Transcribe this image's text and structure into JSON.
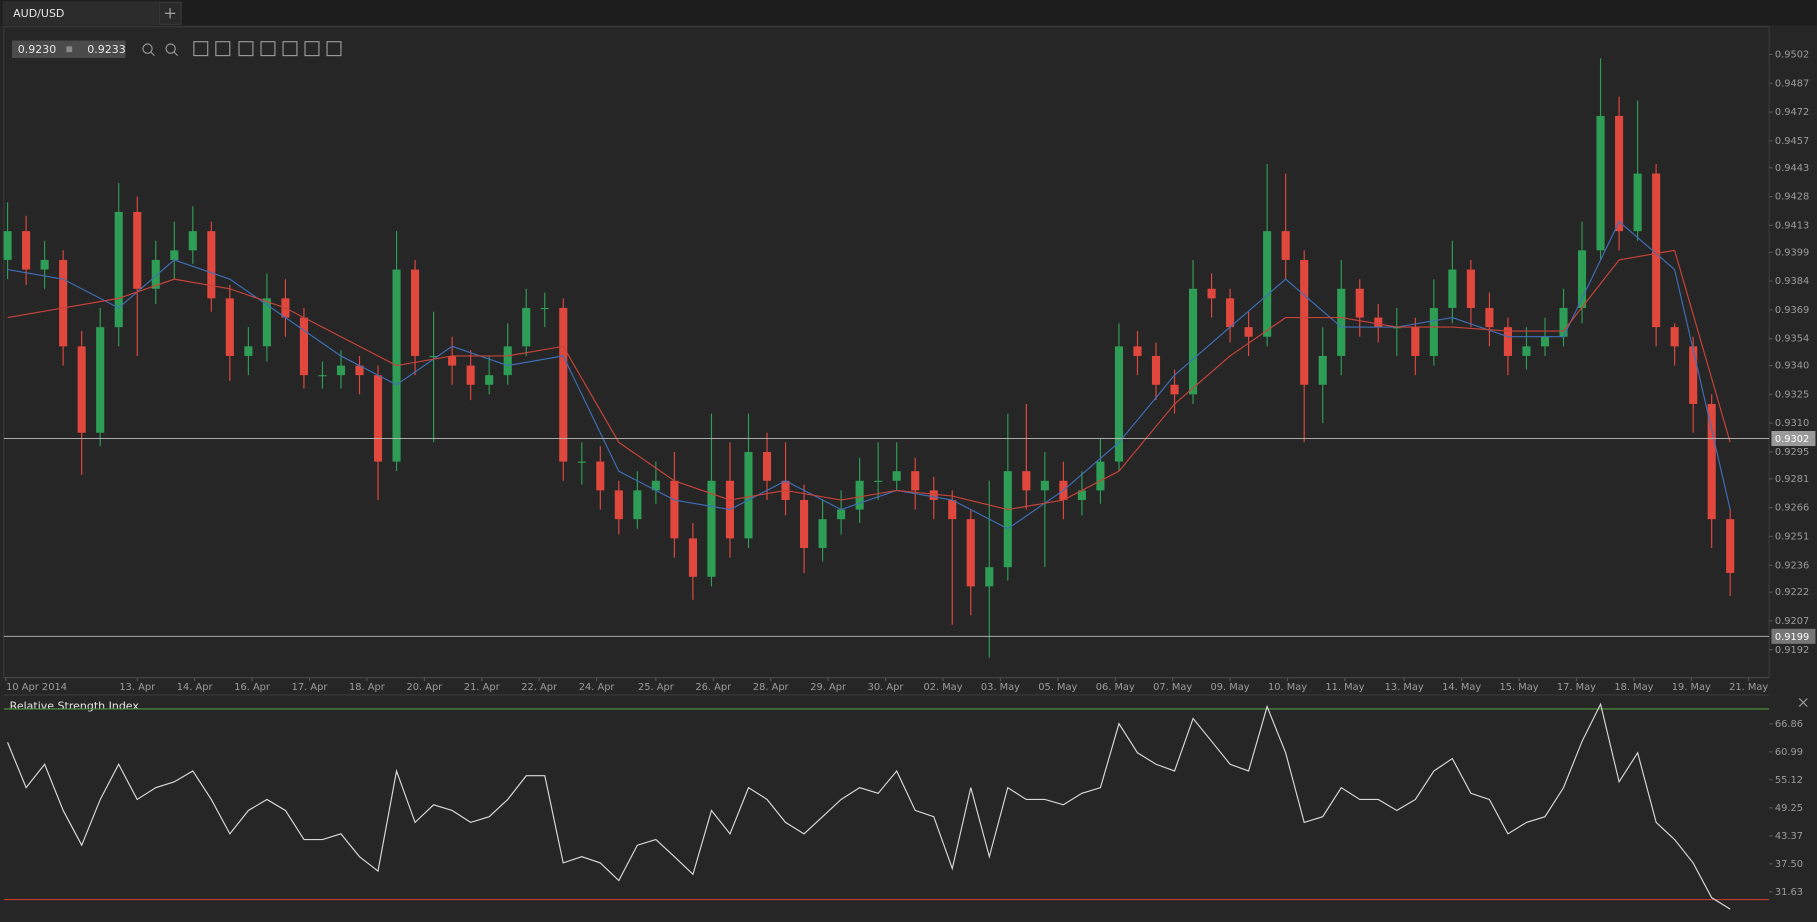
{
  "ui": {
    "tab": "AUD/USD",
    "bid": "0.9230",
    "ask": "0.9233"
  },
  "chart_data": [
    {
      "type": "candlestick",
      "up_color": "#2e9d55",
      "down_color": "#e0483e",
      "open": [
        0.9395,
        0.941,
        0.939,
        0.9395,
        0.935,
        0.9305,
        0.936,
        0.942,
        0.938,
        0.9395,
        0.94,
        0.941,
        0.9375,
        0.9345,
        0.935,
        0.9375,
        0.9365,
        0.9335,
        0.9335,
        0.934,
        0.9335,
        0.929,
        0.939,
        0.9345,
        0.9345,
        0.934,
        0.933,
        0.9335,
        0.935,
        0.937,
        0.937,
        0.929,
        0.929,
        0.9275,
        0.926,
        0.9275,
        0.928,
        0.925,
        0.923,
        0.928,
        0.925,
        0.9295,
        0.928,
        0.927,
        0.9245,
        0.926,
        0.9265,
        0.928,
        0.928,
        0.9285,
        0.9275,
        0.927,
        0.926,
        0.9225,
        0.9235,
        0.9285,
        0.9275,
        0.928,
        0.927,
        0.9275,
        0.929,
        0.935,
        0.9345,
        0.933,
        0.9325,
        0.938,
        0.9375,
        0.936,
        0.9355,
        0.941,
        0.9395,
        0.933,
        0.9345,
        0.938,
        0.9365,
        0.936,
        0.936,
        0.9345,
        0.937,
        0.939,
        0.937,
        0.936,
        0.9345,
        0.935,
        0.9355,
        0.937,
        0.94,
        0.947,
        0.941,
        0.944,
        0.936,
        0.935,
        0.932,
        0.926
      ],
      "high": [
        0.9425,
        0.9418,
        0.9405,
        0.94,
        0.9358,
        0.937,
        0.9435,
        0.9428,
        0.9405,
        0.9415,
        0.9423,
        0.9415,
        0.9382,
        0.936,
        0.9388,
        0.9385,
        0.937,
        0.9342,
        0.9348,
        0.9345,
        0.934,
        0.941,
        0.9395,
        0.9368,
        0.9355,
        0.9348,
        0.9345,
        0.9362,
        0.938,
        0.9378,
        0.9375,
        0.93,
        0.9298,
        0.928,
        0.9285,
        0.929,
        0.9295,
        0.9258,
        0.9315,
        0.93,
        0.9315,
        0.9305,
        0.93,
        0.9278,
        0.927,
        0.9275,
        0.9292,
        0.93,
        0.93,
        0.9292,
        0.9282,
        0.9275,
        0.9265,
        0.928,
        0.9315,
        0.932,
        0.9295,
        0.929,
        0.9285,
        0.9302,
        0.9362,
        0.9358,
        0.9352,
        0.9338,
        0.9395,
        0.9388,
        0.938,
        0.9368,
        0.9445,
        0.944,
        0.94,
        0.936,
        0.9395,
        0.9385,
        0.9372,
        0.937,
        0.9365,
        0.9385,
        0.9405,
        0.9395,
        0.9378,
        0.9365,
        0.936,
        0.9365,
        0.938,
        0.9415,
        0.95,
        0.948,
        0.9478,
        0.9445,
        0.9362,
        0.9355,
        0.9325,
        0.9265
      ],
      "low": [
        0.9385,
        0.9382,
        0.938,
        0.934,
        0.9283,
        0.9298,
        0.935,
        0.9345,
        0.9372,
        0.9385,
        0.9393,
        0.9368,
        0.9332,
        0.9335,
        0.9342,
        0.9355,
        0.9328,
        0.9328,
        0.9328,
        0.9325,
        0.927,
        0.9285,
        0.9335,
        0.93,
        0.933,
        0.9322,
        0.9325,
        0.933,
        0.9345,
        0.936,
        0.928,
        0.9278,
        0.9265,
        0.9252,
        0.9255,
        0.9268,
        0.924,
        0.9218,
        0.9225,
        0.924,
        0.9245,
        0.927,
        0.9262,
        0.9232,
        0.9238,
        0.9252,
        0.9258,
        0.927,
        0.9275,
        0.9265,
        0.926,
        0.9205,
        0.921,
        0.9188,
        0.9228,
        0.9265,
        0.9235,
        0.926,
        0.9262,
        0.9268,
        0.9285,
        0.9335,
        0.9322,
        0.9315,
        0.932,
        0.9365,
        0.9352,
        0.9345,
        0.935,
        0.9385,
        0.93,
        0.931,
        0.9335,
        0.9355,
        0.9352,
        0.9345,
        0.9335,
        0.934,
        0.9362,
        0.936,
        0.935,
        0.9335,
        0.9338,
        0.9345,
        0.935,
        0.9362,
        0.9395,
        0.94,
        0.9405,
        0.935,
        0.934,
        0.9305,
        0.9245,
        0.922
      ],
      "close": [
        0.941,
        0.939,
        0.9395,
        0.935,
        0.9305,
        0.936,
        0.942,
        0.938,
        0.9395,
        0.94,
        0.941,
        0.9375,
        0.9345,
        0.935,
        0.9375,
        0.9365,
        0.9335,
        0.9335,
        0.934,
        0.9335,
        0.929,
        0.939,
        0.9345,
        0.9345,
        0.934,
        0.933,
        0.9335,
        0.935,
        0.937,
        0.937,
        0.929,
        0.929,
        0.9275,
        0.926,
        0.9275,
        0.928,
        0.925,
        0.923,
        0.928,
        0.925,
        0.9295,
        0.928,
        0.927,
        0.9245,
        0.926,
        0.9265,
        0.928,
        0.928,
        0.9285,
        0.9275,
        0.927,
        0.926,
        0.9225,
        0.9235,
        0.9285,
        0.9275,
        0.928,
        0.927,
        0.9275,
        0.929,
        0.935,
        0.9345,
        0.933,
        0.9325,
        0.938,
        0.9375,
        0.936,
        0.9355,
        0.941,
        0.9395,
        0.933,
        0.9345,
        0.938,
        0.9365,
        0.936,
        0.936,
        0.9345,
        0.937,
        0.939,
        0.937,
        0.936,
        0.9345,
        0.935,
        0.9355,
        0.937,
        0.94,
        0.947,
        0.941,
        0.944,
        0.936,
        0.935,
        0.932,
        0.926,
        0.9232
      ],
      "ma": [
        {
          "color": "#3f6fb8",
          "x": [
            0,
            3,
            6,
            9,
            12,
            15,
            18,
            21,
            24,
            27,
            30,
            33,
            36,
            39,
            42,
            45,
            48,
            51,
            54,
            57,
            60,
            63,
            66,
            69,
            72,
            75,
            78,
            81,
            84,
            87,
            90,
            93
          ],
          "values": [
            0.939,
            0.9385,
            0.937,
            0.9395,
            0.9385,
            0.9365,
            0.9345,
            0.933,
            0.935,
            0.934,
            0.9345,
            0.9285,
            0.927,
            0.9265,
            0.928,
            0.9265,
            0.9275,
            0.927,
            0.9255,
            0.9275,
            0.93,
            0.9335,
            0.936,
            0.9385,
            0.936,
            0.936,
            0.9365,
            0.9355,
            0.9355,
            0.9415,
            0.939,
            0.9265
          ]
        },
        {
          "color": "#c8433a",
          "x": [
            0,
            3,
            6,
            9,
            12,
            15,
            18,
            21,
            24,
            27,
            30,
            33,
            36,
            39,
            42,
            45,
            48,
            51,
            54,
            57,
            60,
            63,
            66,
            69,
            72,
            75,
            78,
            81,
            84,
            87,
            90,
            93
          ],
          "values": [
            0.9365,
            0.937,
            0.9375,
            0.9385,
            0.938,
            0.937,
            0.9355,
            0.934,
            0.9345,
            0.9345,
            0.935,
            0.93,
            0.928,
            0.927,
            0.9275,
            0.927,
            0.9275,
            0.9272,
            0.9265,
            0.927,
            0.9285,
            0.932,
            0.9345,
            0.9365,
            0.9365,
            0.936,
            0.936,
            0.9358,
            0.9358,
            0.9395,
            0.94,
            0.93
          ]
        }
      ],
      "levels": [
        0.9302,
        0.9199
      ],
      "xlim": [
        -0.2,
        95.1
      ],
      "xticks": [
        {
          "value": -0.1,
          "label": "10 Apr 2014"
        },
        {
          "value": 7.0,
          "label": "13. Apr"
        },
        {
          "value": 10.1,
          "label": "14. Apr"
        },
        {
          "value": 13.2,
          "label": "16. Apr"
        },
        {
          "value": 16.3,
          "label": "17. Apr"
        },
        {
          "value": 19.4,
          "label": "18. Apr"
        },
        {
          "value": 22.5,
          "label": "20. Apr"
        },
        {
          "value": 25.6,
          "label": "21. Apr"
        },
        {
          "value": 28.7,
          "label": "22. Apr"
        },
        {
          "value": 31.8,
          "label": "24. Apr"
        },
        {
          "value": 35.0,
          "label": "25. Apr"
        },
        {
          "value": 38.1,
          "label": "26. Apr"
        },
        {
          "value": 41.2,
          "label": "28. Apr"
        },
        {
          "value": 44.3,
          "label": "29. Apr"
        },
        {
          "value": 47.4,
          "label": "30. Apr"
        },
        {
          "value": 50.5,
          "label": "02. May"
        },
        {
          "value": 53.6,
          "label": "03. May"
        },
        {
          "value": 56.7,
          "label": "05. May"
        },
        {
          "value": 59.8,
          "label": "06. May"
        },
        {
          "value": 62.9,
          "label": "07. May"
        },
        {
          "value": 66.0,
          "label": "09. May"
        },
        {
          "value": 69.1,
          "label": "10. May"
        },
        {
          "value": 72.2,
          "label": "11. May"
        },
        {
          "value": 75.4,
          "label": "13. May"
        },
        {
          "value": 78.5,
          "label": "14. May"
        },
        {
          "value": 81.6,
          "label": "15. May"
        },
        {
          "value": 84.7,
          "label": "17. May"
        },
        {
          "value": 87.8,
          "label": "18. May"
        },
        {
          "value": 90.9,
          "label": "19. May"
        },
        {
          "value": 94.0,
          "label": "21. May"
        }
      ],
      "ylim": [
        0.91775,
        0.95165
      ],
      "yticks": [
        0.9502,
        0.9487,
        0.9472,
        0.9457,
        0.9443,
        0.9428,
        0.9413,
        0.9399,
        0.9384,
        0.9369,
        0.9354,
        {
          "value": 0.934,
          "label": "0.9340"
        },
        0.9325,
        {
          "value": 0.931,
          "label": "0.9310"
        },
        0.9295,
        0.9281,
        0.9266,
        0.9251,
        0.9236,
        0.9222,
        0.9207,
        0.9192
      ]
    },
    {
      "type": "line",
      "title": "Relative Strength Index",
      "color": "#d8d8d8",
      "values": [
        63,
        53.5,
        58.4,
        48.7,
        41.4,
        51,
        58.4,
        51,
        53.5,
        54.7,
        57,
        51,
        43.8,
        48.7,
        51,
        48.7,
        42.6,
        42.6,
        43.8,
        39,
        36,
        57,
        46.2,
        49.9,
        48.7,
        46.2,
        47.4,
        51,
        56,
        56,
        37.7,
        39,
        37.7,
        34,
        41.4,
        42.6,
        39,
        35.3,
        48.7,
        43.8,
        53.5,
        51,
        46.2,
        43.8,
        47.4,
        51,
        53.5,
        52.3,
        57,
        48.7,
        47.4,
        36.5,
        53.5,
        39,
        53.5,
        51,
        51,
        49.9,
        52.3,
        53.5,
        66.9,
        60.8,
        58.4,
        57,
        68,
        63.2,
        58.4,
        57,
        70.5,
        60.8,
        46.2,
        47.4,
        53.5,
        51,
        51,
        48.7,
        51,
        57,
        59.6,
        52.3,
        51,
        43.8,
        46.2,
        47.4,
        53.5,
        63.2,
        71,
        54.7,
        60.8,
        46.2,
        42.6,
        37.7,
        30.4,
        28
      ],
      "levels": [
        70,
        30
      ],
      "level_colors": [
        "#4f9a3c",
        "#c23a30"
      ],
      "xlim": [
        -0.2,
        95.1
      ],
      "ylim": [
        25.3,
        72.2
      ],
      "yticks": [
        66.86,
        60.99,
        55.12,
        49.25,
        43.37,
        {
          "value": 37.5,
          "label": "37.50"
        },
        31.63
      ]
    }
  ]
}
